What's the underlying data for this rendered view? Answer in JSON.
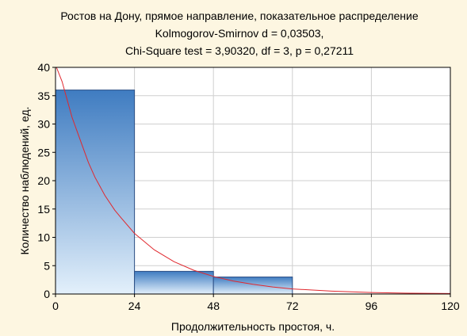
{
  "chart_data": {
    "type": "bar",
    "title_lines": [
      "Ростов на Дону, прямое направление, показательное распределение",
      "Kolmogorov-Smirnov d = 0,03503,",
      "Chi-Square test = 3,90320, df = 3, p = 0,27211"
    ],
    "xlabel": "Продолжительность простоя, ч.",
    "ylabel": "Количество наблюдений, ед.",
    "xlim": [
      0,
      120
    ],
    "ylim": [
      0,
      40
    ],
    "x_ticks": [
      0,
      24,
      48,
      72,
      96,
      120
    ],
    "y_ticks": [
      0,
      5,
      10,
      15,
      20,
      25,
      30,
      35,
      40
    ],
    "grid": true,
    "bins": [
      {
        "x0": 0,
        "x1": 24,
        "count": 36
      },
      {
        "x0": 24,
        "x1": 48,
        "count": 4
      },
      {
        "x0": 48,
        "x1": 72,
        "count": 3
      }
    ],
    "fit": {
      "type": "exponential",
      "points": [
        [
          0.3,
          40.0
        ],
        [
          2,
          37.5
        ],
        [
          5,
          31.2
        ],
        [
          8,
          26.4
        ],
        [
          10,
          23.2
        ],
        [
          12,
          20.6
        ],
        [
          15,
          17.4
        ],
        [
          18,
          14.8
        ],
        [
          20,
          13.4
        ],
        [
          24,
          10.7
        ],
        [
          30,
          7.8
        ],
        [
          36,
          5.7
        ],
        [
          42,
          4.2
        ],
        [
          48,
          3.1
        ],
        [
          54,
          2.3
        ],
        [
          60,
          1.7
        ],
        [
          66,
          1.25
        ],
        [
          72,
          0.9
        ],
        [
          84,
          0.5
        ],
        [
          96,
          0.27
        ],
        [
          108,
          0.14
        ],
        [
          120,
          0.08
        ]
      ]
    },
    "colors": {
      "bar_top": "#3f7cc1",
      "bar_bottom": "#e3f0fb",
      "bar_stroke": "#2c4f86",
      "fit_line": "#e0282e",
      "grid": "#cfcfcf",
      "plot_bg": "#ffffff",
      "page_bg": "#fdf6e1"
    }
  }
}
